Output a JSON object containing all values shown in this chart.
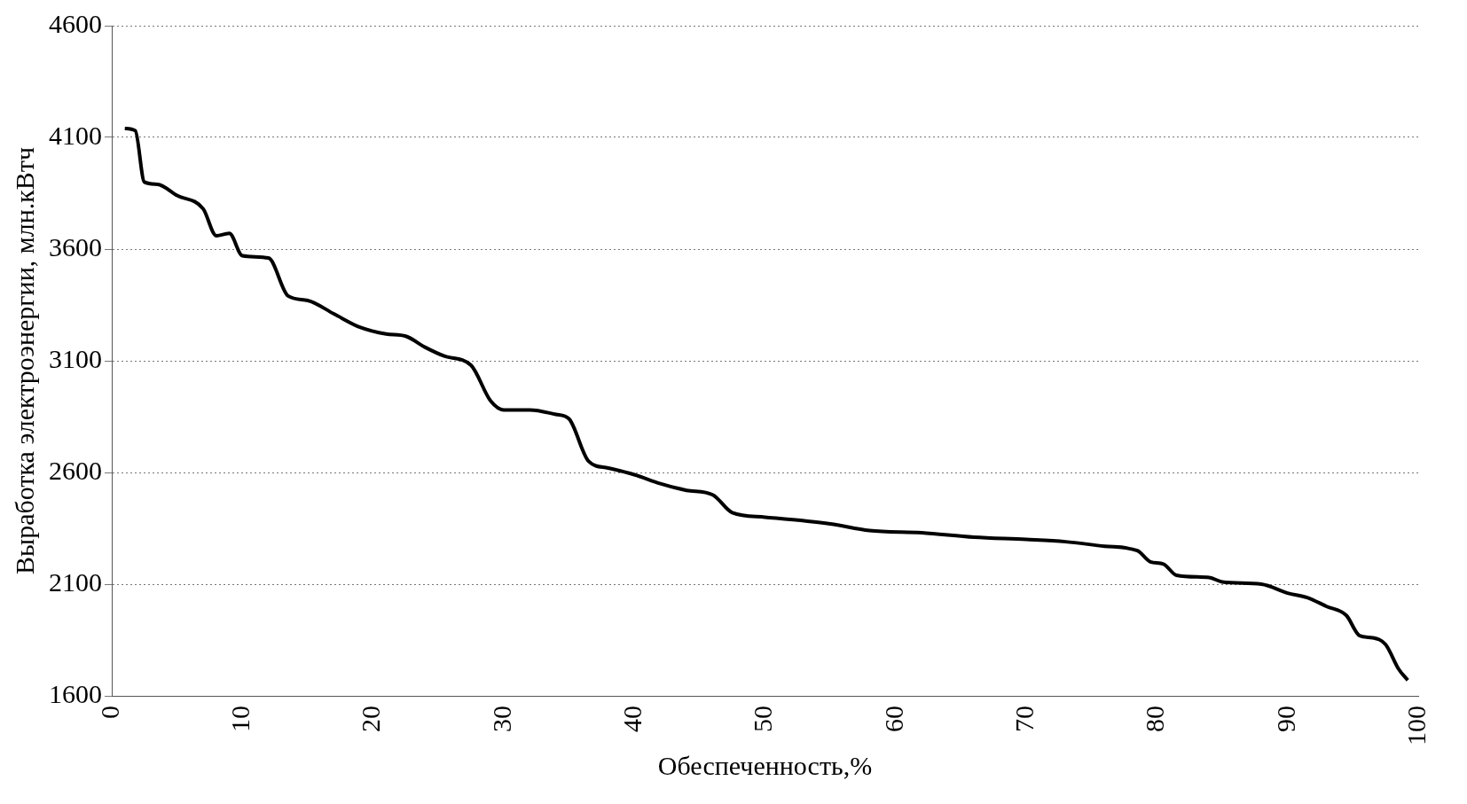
{
  "chart_data": {
    "type": "line",
    "xlabel": "Обеспеченность,%",
    "ylabel": "Выработка электроэнергии, млн.кВтч",
    "xlim": [
      0,
      100
    ],
    "xticks": [
      0,
      10,
      20,
      30,
      40,
      50,
      60,
      70,
      80,
      90,
      100
    ],
    "ylim": [
      1600,
      4600
    ],
    "yticks": [
      1600,
      2100,
      2600,
      3100,
      3600,
      4100,
      4600
    ],
    "grid": "y",
    "marker": "none",
    "line_style": "solid",
    "legend": false,
    "series": [
      {
        "color": "#000000",
        "x": [
          1,
          1.8,
          2.5,
          3.5,
          5,
          7,
          8,
          9,
          10,
          12,
          13.5,
          15,
          17,
          19,
          21,
          22.5,
          24,
          25.5,
          27.5,
          29,
          30,
          32,
          34,
          35,
          36.5,
          38,
          40,
          42,
          44,
          46,
          47.5,
          50,
          55,
          58,
          62,
          66,
          70,
          73,
          76,
          78.5,
          79.5,
          80.5,
          81.5,
          84,
          85,
          88,
          90,
          91.5,
          93,
          94.5,
          95.5,
          96.5,
          97.5,
          98.5,
          99.2
        ],
        "values": [
          4140,
          4130,
          3900,
          3890,
          3840,
          3780,
          3660,
          3670,
          3570,
          3560,
          3390,
          3370,
          3310,
          3250,
          3220,
          3210,
          3160,
          3120,
          3080,
          2920,
          2880,
          2880,
          2860,
          2840,
          2650,
          2620,
          2590,
          2550,
          2520,
          2500,
          2420,
          2400,
          2370,
          2340,
          2330,
          2310,
          2300,
          2290,
          2270,
          2250,
          2200,
          2190,
          2140,
          2130,
          2110,
          2100,
          2060,
          2040,
          2000,
          1960,
          1870,
          1860,
          1830,
          1720,
          1670
        ]
      }
    ]
  }
}
